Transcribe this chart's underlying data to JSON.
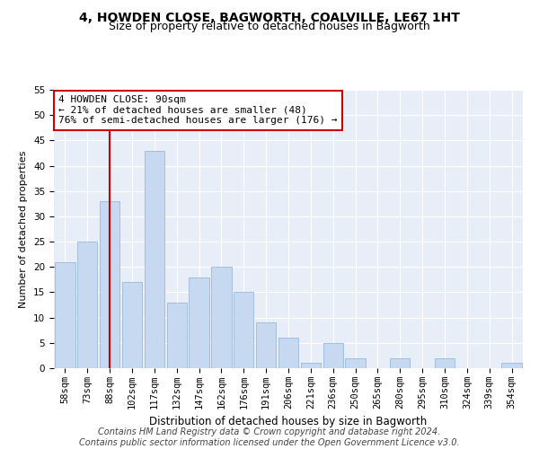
{
  "title": "4, HOWDEN CLOSE, BAGWORTH, COALVILLE, LE67 1HT",
  "subtitle": "Size of property relative to detached houses in Bagworth",
  "xlabel": "Distribution of detached houses by size in Bagworth",
  "ylabel": "Number of detached properties",
  "categories": [
    "58sqm",
    "73sqm",
    "88sqm",
    "102sqm",
    "117sqm",
    "132sqm",
    "147sqm",
    "162sqm",
    "176sqm",
    "191sqm",
    "206sqm",
    "221sqm",
    "236sqm",
    "250sqm",
    "265sqm",
    "280sqm",
    "295sqm",
    "310sqm",
    "324sqm",
    "339sqm",
    "354sqm"
  ],
  "values": [
    21,
    25,
    33,
    17,
    43,
    13,
    18,
    20,
    15,
    9,
    6,
    1,
    5,
    2,
    0,
    2,
    0,
    2,
    0,
    0,
    1
  ],
  "bar_color": "#c6d9f0",
  "bar_edgecolor": "#9ab8d8",
  "property_line_color": "#cc0000",
  "property_line_index": 2,
  "annotation_text": "4 HOWDEN CLOSE: 90sqm\n← 21% of detached houses are smaller (48)\n76% of semi-detached houses are larger (176) →",
  "annotation_box_facecolor": "#ffffff",
  "annotation_box_edgecolor": "#cc0000",
  "ylim": [
    0,
    55
  ],
  "yticks": [
    0,
    5,
    10,
    15,
    20,
    25,
    30,
    35,
    40,
    45,
    50,
    55
  ],
  "background_color": "#e8eef8",
  "footer_text": "Contains HM Land Registry data © Crown copyright and database right 2024.\nContains public sector information licensed under the Open Government Licence v3.0.",
  "title_fontsize": 10,
  "subtitle_fontsize": 9,
  "xlabel_fontsize": 8.5,
  "ylabel_fontsize": 8,
  "tick_fontsize": 7.5,
  "annotation_fontsize": 8,
  "footer_fontsize": 7
}
